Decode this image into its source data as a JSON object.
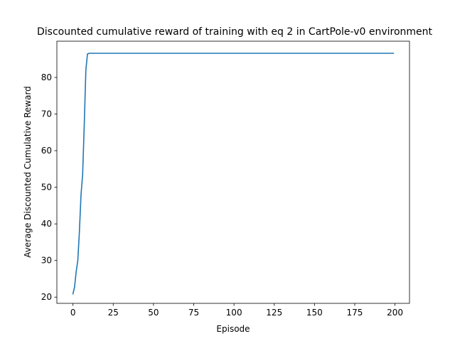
{
  "chart_data": {
    "type": "line",
    "title": "Discounted cumulative reward of training with eq 2 in CartPole-v0 environment",
    "xlabel": "Episode",
    "ylabel": "Average Discounted Cumulative Reward",
    "xlim": [
      -10,
      209
    ],
    "ylim": [
      18.3,
      89.9
    ],
    "xticks": [
      0,
      25,
      50,
      75,
      100,
      125,
      150,
      175,
      200
    ],
    "yticks": [
      20,
      30,
      40,
      50,
      60,
      70,
      80
    ],
    "grid": false,
    "series": [
      {
        "color": "#1f77b4",
        "x": [
          0,
          1,
          2,
          3,
          4,
          5,
          6,
          7,
          8,
          9,
          10,
          15,
          25,
          50,
          100,
          150,
          199
        ],
        "y": [
          20.9,
          22.8,
          27.0,
          30.0,
          38.0,
          48.0,
          53.5,
          67.0,
          82.0,
          86.4,
          86.6,
          86.6,
          86.6,
          86.6,
          86.6,
          86.6,
          86.6
        ]
      }
    ]
  }
}
